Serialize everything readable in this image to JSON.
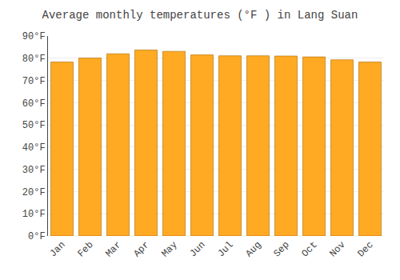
{
  "chart_data": {
    "type": "bar",
    "title": "Average monthly temperatures (°F ) in Lang Suan",
    "categories": [
      "Jan",
      "Feb",
      "Mar",
      "Apr",
      "May",
      "Jun",
      "Jul",
      "Aug",
      "Sep",
      "Oct",
      "Nov",
      "Dec"
    ],
    "values": [
      78.3,
      80.1,
      82.0,
      83.7,
      83.1,
      81.5,
      81.1,
      81.1,
      81.0,
      80.6,
      79.3,
      78.3
    ],
    "color": "#FFAA22",
    "ylim": [
      0,
      90
    ],
    "yticks": [
      {
        "value": 0,
        "label": "0°F"
      },
      {
        "value": 10,
        "label": "10°F"
      },
      {
        "value": 20,
        "label": "20°F"
      },
      {
        "value": 30,
        "label": "30°F"
      },
      {
        "value": 40,
        "label": "40°F"
      },
      {
        "value": 50,
        "label": "50°F"
      },
      {
        "value": 60,
        "label": "60°F"
      },
      {
        "value": 70,
        "label": "70°F"
      },
      {
        "value": 80,
        "label": "80°F"
      },
      {
        "value": 90,
        "label": "90°F"
      }
    ],
    "grid": true
  }
}
